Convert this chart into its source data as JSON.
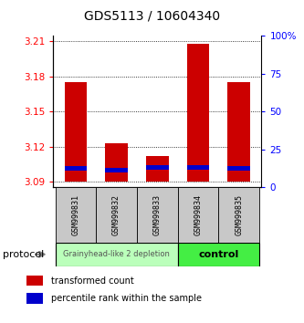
{
  "title": "GDS5113 / 10604340",
  "samples": [
    "GSM999831",
    "GSM999832",
    "GSM999833",
    "GSM999834",
    "GSM999835"
  ],
  "red_tops": [
    3.175,
    3.123,
    3.112,
    3.208,
    3.175
  ],
  "red_bottoms": [
    3.09,
    3.09,
    3.09,
    3.09,
    3.09
  ],
  "blue_tops": [
    3.103,
    3.102,
    3.104,
    3.104,
    3.103
  ],
  "blue_bottoms": [
    3.099,
    3.098,
    3.1,
    3.1,
    3.099
  ],
  "ylim_left": [
    3.085,
    3.215
  ],
  "yticks_left": [
    3.09,
    3.12,
    3.15,
    3.18,
    3.21
  ],
  "ytick_labels_left": [
    "3.09",
    "3.12",
    "3.15",
    "3.18",
    "3.21"
  ],
  "ylim_right": [
    0,
    100
  ],
  "yticks_right": [
    0,
    25,
    50,
    75,
    100
  ],
  "ytick_labels_right": [
    "0",
    "25",
    "50",
    "75",
    "100%"
  ],
  "bar_width": 0.55,
  "group1_label": "Grainyhead-like 2 depletion",
  "group2_label": "control",
  "group1_color": "#bbffbb",
  "group2_color": "#44ee44",
  "label_bg": "#c8c8c8",
  "protocol_label": "protocol",
  "legend_red": "transformed count",
  "legend_blue": "percentile rank within the sample"
}
